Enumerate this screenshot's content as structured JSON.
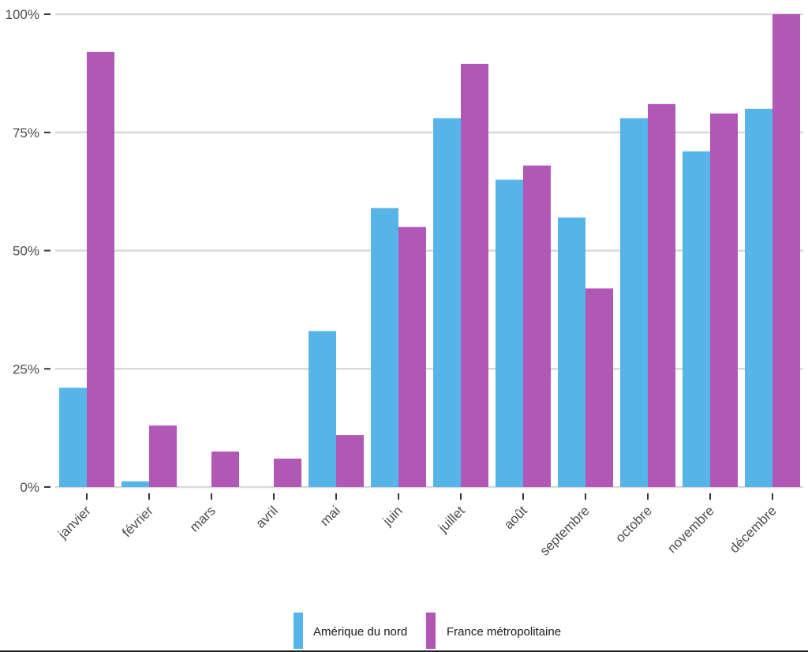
{
  "chart_data": {
    "type": "bar",
    "categories": [
      "janvier",
      "février",
      "mars",
      "avril",
      "mai",
      "juin",
      "juillet",
      "août",
      "septembre",
      "octobre",
      "novembre",
      "décembre"
    ],
    "series": [
      {
        "name": "Amérique du nord",
        "color": "#56b4e9",
        "values": [
          21,
          1.2,
          0,
          0,
          33,
          59,
          78,
          65,
          57,
          78,
          71,
          80
        ]
      },
      {
        "name": "France métropolitaine",
        "color": "#b157b5",
        "values": [
          92,
          13,
          7.5,
          6,
          11,
          55,
          89.5,
          68,
          42,
          81,
          79,
          100
        ]
      }
    ],
    "title": "",
    "xlabel": "",
    "ylabel": "",
    "ylim": [
      0,
      100
    ],
    "yticks": [
      "0%",
      "25%",
      "50%",
      "75%",
      "100%"
    ],
    "ytick_values": [
      0,
      25,
      50,
      75,
      100
    ],
    "grid": "horizontal",
    "legend_position": "bottom"
  }
}
